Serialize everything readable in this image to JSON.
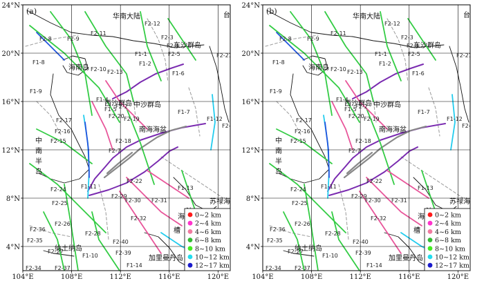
{
  "panels": [
    {
      "letter": "(a)"
    },
    {
      "letter": "(b)"
    }
  ],
  "axes": {
    "lat_ticks": [
      "4°N",
      "8°N",
      "12°N",
      "16°N",
      "20°N",
      "24°N"
    ],
    "lon_ticks": [
      "104°E",
      "108°E",
      "112°E",
      "116°E",
      "120°E"
    ]
  },
  "place_labels": {
    "hainan_mainland": "华南大陆",
    "hainan_island": "海南岛",
    "dongsha": "东沙群岛",
    "xisha": "西沙群岛",
    "zhongsha": "中沙群岛",
    "basin": "南海海盆",
    "indochina": [
      "中",
      "南",
      "半",
      "岛"
    ],
    "sulu": "苏禄海",
    "natuna": "纳土纳岛",
    "kalimantan": "加里曼丹岛",
    "trough": [
      "海",
      "槽"
    ],
    "trough_extra": "沙",
    "taiwan": "台"
  },
  "fault_labels": [
    "F2-8",
    "F2-9",
    "F2-11",
    "F2-12",
    "F1-8",
    "F2-10",
    "F2-5",
    "F2-4",
    "F2-3",
    "F1-1",
    "F1-9",
    "F1-2",
    "F2-21",
    "F1-6",
    "F2-13",
    "F1-4",
    "F2-2",
    "F1-5",
    "F2-20",
    "F2-19",
    "F2-17",
    "F2-16",
    "F2-15",
    "F2-18",
    "F2-7",
    "F1-7",
    "F1-12",
    "F2-23",
    "F2-24",
    "F2-25",
    "F2-22",
    "F1-11",
    "F2-26",
    "F2-36",
    "F2-29",
    "F2-30",
    "F2-31",
    "F1-13",
    "F2-35",
    "F2-28",
    "F2-32",
    "F2-40",
    "F2-27",
    "F2-39",
    "F1-10",
    "F1-14",
    "F2-34",
    "F2-37"
  ],
  "legend": {
    "items": [
      {
        "label": "0~2 km",
        "color": "#ff1a1a"
      },
      {
        "label": "2~4 km",
        "color": "#ff33cc"
      },
      {
        "label": "4~6 km",
        "color": "#f07aa0"
      },
      {
        "label": "6~8 km",
        "color": "#33bb33"
      },
      {
        "label": "8~10 km",
        "color": "#44ee22"
      },
      {
        "label": "10~12 km",
        "color": "#22ddee"
      },
      {
        "label": "12~17 km",
        "color": "#1a1acc"
      }
    ]
  },
  "colors": {
    "fault_green": "#33cc44",
    "fault_pink": "#e8559a",
    "fault_blue": "#2255dd",
    "fault_cyan": "#22ccee",
    "basin_purple": "#7a2bb0",
    "dashed_gray": "#999999",
    "coast": "#111111",
    "grid": "#000000"
  }
}
